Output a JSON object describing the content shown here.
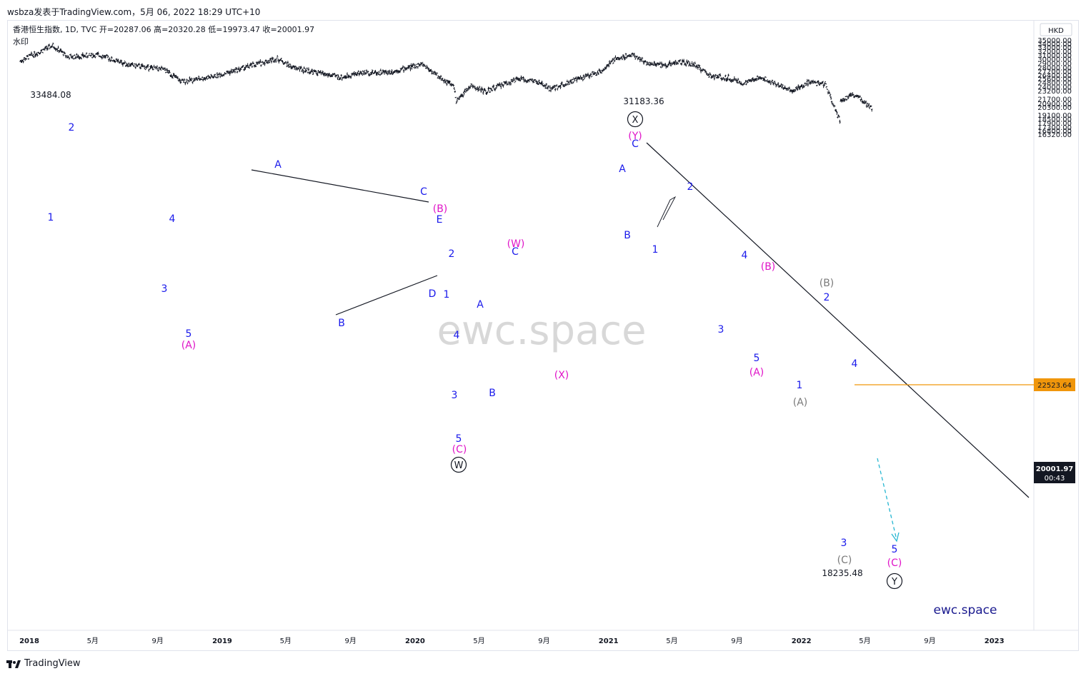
{
  "header": {
    "text": "wsbza发表于TradingView.com，5月 06, 2022 18:29 UTC+10"
  },
  "legend": {
    "symbol_line": "香港恒生指数, 1D, TVC  开=20287.06  高=20320.28  低=19973.47  收=20001.97",
    "watermark_label": "水印"
  },
  "watermark": "ewc.space",
  "brand_bottom_right": "ewc.space",
  "footer": {
    "brand": "TradingView"
  },
  "currency_button": "HKD",
  "current_price": {
    "value": "20001.97",
    "countdown": "00:43",
    "color": "#131722"
  },
  "resistance_level": {
    "value": "22523.64",
    "color": "#f0960b"
  },
  "colors": {
    "wave_blue": "#1a1aeb",
    "wave_magenta": "#e014c8",
    "wave_gray": "#7a7a7a",
    "candle": "#131722",
    "arrow": "#26b6d1"
  },
  "chart_data": {
    "type": "line",
    "title": "",
    "xlabel": "",
    "ylabel": "",
    "x_ticks": [
      "2018",
      "5月",
      "9月",
      "2019",
      "5月",
      "9月",
      "2020",
      "5月",
      "9月",
      "2021",
      "5月",
      "9月",
      "2022",
      "5月",
      "9月",
      "2023"
    ],
    "y_ticks": [
      "35000.00",
      "34000.00",
      "33000.00",
      "32000.00",
      "31000.00",
      "30000.00",
      "29000.00",
      "28000.00",
      "27200.00",
      "26400.00",
      "25600.00",
      "24800.00",
      "24000.00",
      "23200.00",
      "21700.00",
      "20900.00",
      "20300.00",
      "19100.00",
      "18500.00",
      "17900.00",
      "17300.00",
      "16800.00",
      "16320.00"
    ],
    "y_scale": "log",
    "series": [
      {
        "x": [
          "2017-12",
          "2018-01",
          "2018-02",
          "2018-03",
          "2018-05",
          "2018-06",
          "2018-07",
          "2018-09",
          "2018-10",
          "2018-12",
          "2019-01",
          "2019-04",
          "2019-05",
          "2019-08",
          "2019-09",
          "2019-11",
          "2020-01",
          "2020-02",
          "2020-03",
          "2020-03-19",
          "2020-04",
          "2020-05",
          "2020-06",
          "2020-07",
          "2020-08",
          "2020-09",
          "2020-10",
          "2020-12",
          "2021-01",
          "2021-02",
          "2021-03",
          "2021-04",
          "2021-05",
          "2021-06",
          "2021-07",
          "2021-08",
          "2021-09",
          "2021-10",
          "2021-11",
          "2021-12",
          "2022-01",
          "2022-02",
          "2022-03-15",
          "2022-03",
          "2022-04",
          "2022-05"
        ],
        "values": [
          29500,
          31500,
          33484,
          30500,
          31000,
          29500,
          28500,
          27500,
          25000,
          26000,
          27000,
          30200,
          28000,
          25800,
          26800,
          27000,
          28800,
          26000,
          24000,
          21150,
          24200,
          23000,
          24500,
          25500,
          25100,
          23500,
          24800,
          27000,
          30000,
          31183,
          29000,
          28500,
          29300,
          28500,
          26000,
          25800,
          24500,
          26000,
          24500,
          23200,
          24800,
          24500,
          18235,
          21500,
          22523,
          20002
        ]
      }
    ],
    "annotations": [
      "33484.08",
      "31183.36",
      "18235.48",
      "1",
      "2",
      "3",
      "4",
      "5",
      "(A)",
      "A",
      "B",
      "C",
      "D",
      "E",
      "(B)",
      "(C)",
      "W",
      "(W)",
      "(X)",
      "X",
      "(Y)",
      "Y",
      "(A)",
      "(B)",
      "(C)"
    ],
    "grid": false,
    "legend": "top-left"
  }
}
